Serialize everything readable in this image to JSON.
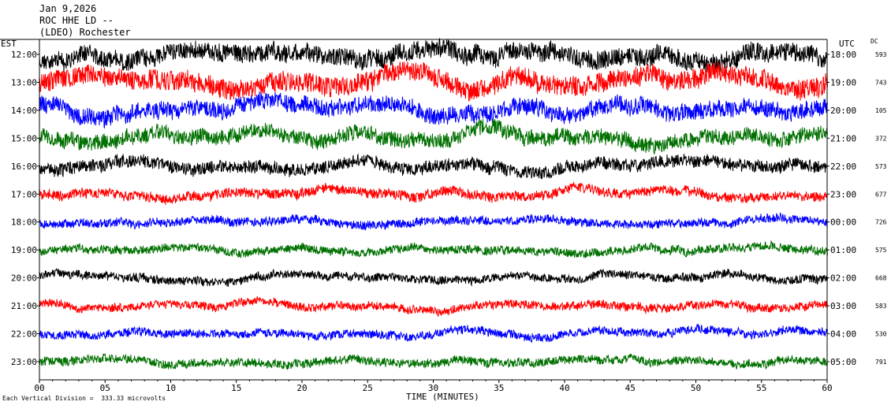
{
  "header": {
    "date": "Jan 9,2026",
    "station": "ROC HHE LD --",
    "network": "(LDEO) Rochester"
  },
  "left_axis_label": "EST",
  "right_axis_label": "UTC",
  "dc_label": "DC",
  "x_axis_title": "TIME (MINUTES)",
  "footnote": "Each Vertical Division =  333.33 microvolts",
  "chart_data": {
    "type": "line",
    "title": "Jan 9,2026 ROC HHE LD -- (LDEO) Rochester",
    "xlabel": "TIME (MINUTES)",
    "xlim": [
      0,
      60
    ],
    "x_ticks": [
      "00",
      "05",
      "10",
      "15",
      "20",
      "25",
      "30",
      "35",
      "40",
      "45",
      "50",
      "55",
      "60"
    ],
    "trace_colors": [
      "#000000",
      "#ff0000",
      "#0000ff",
      "#007000"
    ],
    "rows": [
      {
        "est": "12:00",
        "utc": "18:00",
        "dc": "593",
        "color": "#000000",
        "amplitude": 1.3
      },
      {
        "est": "13:00",
        "utc": "19:00",
        "dc": "743",
        "color": "#ff0000",
        "amplitude": 1.4
      },
      {
        "est": "14:00",
        "utc": "20:00",
        "dc": "105",
        "color": "#0000ff",
        "amplitude": 1.2
      },
      {
        "est": "15:00",
        "utc": "21:00",
        "dc": "372",
        "color": "#007000",
        "amplitude": 1.1
      },
      {
        "est": "16:00",
        "utc": "22:00",
        "dc": "573",
        "color": "#000000",
        "amplitude": 0.9
      },
      {
        "est": "17:00",
        "utc": "23:00",
        "dc": "677",
        "color": "#ff0000",
        "amplitude": 0.7
      },
      {
        "est": "18:00",
        "utc": "00:00",
        "dc": "726",
        "color": "#0000ff",
        "amplitude": 0.6
      },
      {
        "est": "19:00",
        "utc": "01:00",
        "dc": "575",
        "color": "#007000",
        "amplitude": 0.6
      },
      {
        "est": "20:00",
        "utc": "02:00",
        "dc": "668",
        "color": "#000000",
        "amplitude": 0.6
      },
      {
        "est": "21:00",
        "utc": "03:00",
        "dc": "583",
        "color": "#ff0000",
        "amplitude": 0.6
      },
      {
        "est": "22:00",
        "utc": "04:00",
        "dc": "530",
        "color": "#0000ff",
        "amplitude": 0.6
      },
      {
        "est": "23:00",
        "utc": "05:00",
        "dc": "791",
        "color": "#007000",
        "amplitude": 0.6
      }
    ]
  }
}
